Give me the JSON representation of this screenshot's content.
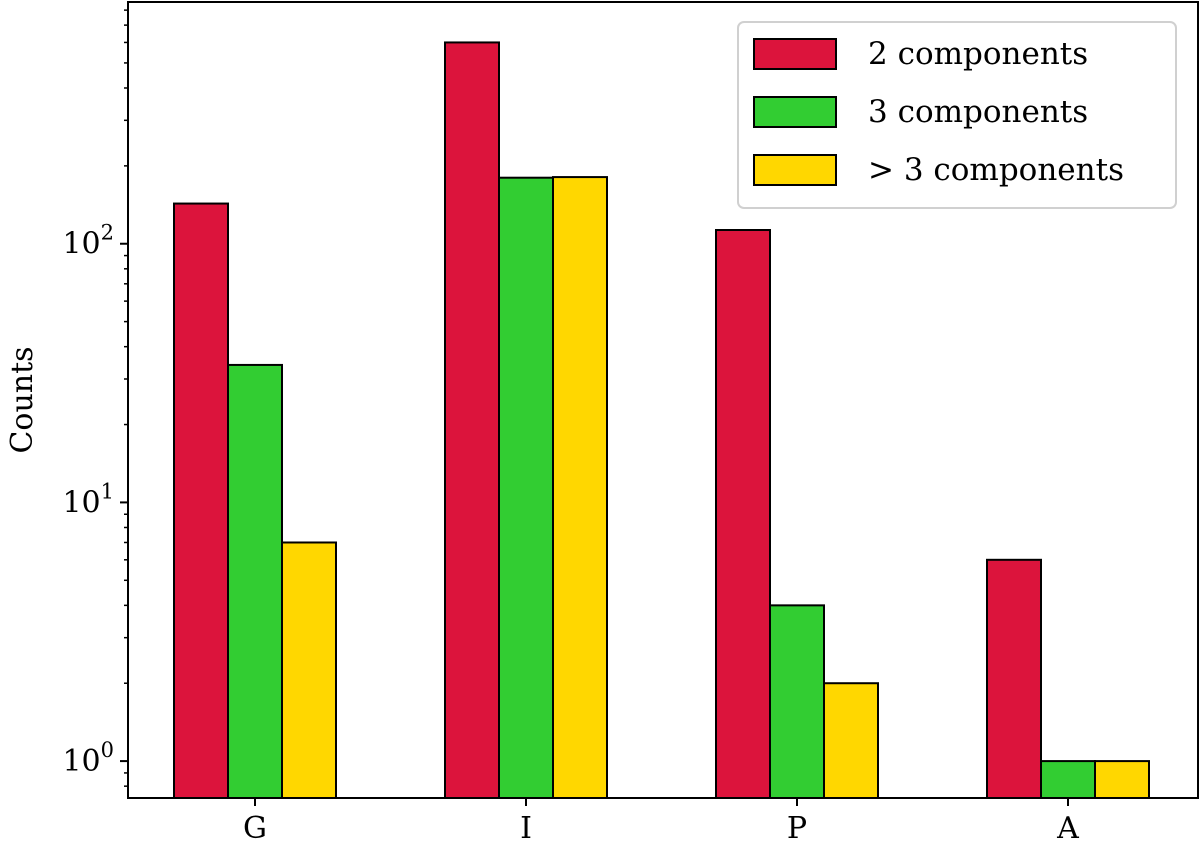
{
  "chart_data": {
    "type": "bar",
    "scale": "log",
    "categories": [
      "G",
      "I",
      "P",
      "A"
    ],
    "series": [
      {
        "name": "2 components",
        "color": "#DC143C",
        "values": [
          143,
          600,
          113,
          6
        ]
      },
      {
        "name": "3 components",
        "color": "#32CD32",
        "values": [
          34,
          180,
          4,
          1
        ]
      },
      {
        "name": "> 3 components",
        "color": "#FFD700",
        "values": [
          7,
          181,
          2,
          1
        ]
      }
    ],
    "title": "",
    "xlabel": "",
    "ylabel": "Counts",
    "ylim": [
      0.72,
      860
    ],
    "yticks": [
      {
        "base": "10",
        "exp": "0",
        "value": 1
      },
      {
        "base": "10",
        "exp": "1",
        "value": 10
      },
      {
        "base": "10",
        "exp": "2",
        "value": 100
      }
    ],
    "grid": false,
    "legend_position": "top-right"
  }
}
